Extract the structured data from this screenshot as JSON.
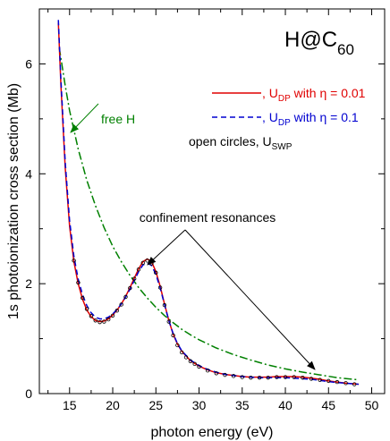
{
  "chart_data": {
    "type": "line",
    "title": {
      "main": "H@C",
      "sub": "60"
    },
    "xlabel": "photon energy (eV)",
    "ylabel": "1s photoionization cross section (Mb)",
    "xlim": [
      11.5,
      51.5
    ],
    "ylim": [
      0,
      7.0
    ],
    "xticks": [
      15,
      20,
      25,
      30,
      35,
      40,
      45,
      50
    ],
    "yticks": [
      0,
      2,
      4,
      6
    ],
    "x_tick_labels": [
      "15",
      "20",
      "25",
      "30",
      "35",
      "40",
      "45",
      "50"
    ],
    "y_tick_labels": [
      "0",
      "2",
      "4",
      "6"
    ],
    "grid": false,
    "legend_position": "top-right",
    "legend": [
      {
        "line": "red-solid",
        "prefix": ", U",
        "sub": "DP",
        "suffix": " with η = 0.01",
        "color": "#e00000"
      },
      {
        "line": "blue-dashed",
        "prefix": ", U",
        "sub": "DP",
        "suffix": " with η = 0.1",
        "color": "#0000d0"
      },
      {
        "line": "",
        "prefix": "open circles, U",
        "sub": "SWP",
        "suffix": "",
        "color": "#000000"
      }
    ],
    "annotations": {
      "free_h": "free H",
      "confinement": "confinement resonances"
    },
    "series": [
      {
        "name": "free H",
        "style": "dash-dot",
        "color": "#008000",
        "points": [
          [
            13.8,
            6.3
          ],
          [
            14.5,
            5.6
          ],
          [
            15,
            5.15
          ],
          [
            16,
            4.45
          ],
          [
            17,
            3.88
          ],
          [
            18,
            3.42
          ],
          [
            19,
            3.02
          ],
          [
            20,
            2.68
          ],
          [
            21,
            2.4
          ],
          [
            22,
            2.15
          ],
          [
            23,
            1.93
          ],
          [
            24,
            1.74
          ],
          [
            25,
            1.57
          ],
          [
            26,
            1.42
          ],
          [
            27,
            1.29
          ],
          [
            28,
            1.17
          ],
          [
            29,
            1.07
          ],
          [
            30,
            0.98
          ],
          [
            32,
            0.83
          ],
          [
            34,
            0.71
          ],
          [
            36,
            0.61
          ],
          [
            38,
            0.52
          ],
          [
            40,
            0.45
          ],
          [
            42,
            0.39
          ],
          [
            44,
            0.34
          ],
          [
            46,
            0.29
          ],
          [
            48.5,
            0.25
          ]
        ]
      },
      {
        "name": "U_DP with η = 0.01",
        "style": "solid",
        "color": "#e00000",
        "points": [
          [
            13.7,
            6.75
          ],
          [
            14,
            5.6
          ],
          [
            14.5,
            4.1
          ],
          [
            15,
            3.05
          ],
          [
            15.5,
            2.4
          ],
          [
            16,
            2.0
          ],
          [
            16.5,
            1.72
          ],
          [
            17,
            1.52
          ],
          [
            17.5,
            1.4
          ],
          [
            18,
            1.33
          ],
          [
            18.5,
            1.31
          ],
          [
            19,
            1.32
          ],
          [
            19.5,
            1.36
          ],
          [
            20,
            1.43
          ],
          [
            20.5,
            1.52
          ],
          [
            21,
            1.63
          ],
          [
            21.5,
            1.77
          ],
          [
            22,
            1.93
          ],
          [
            22.5,
            2.1
          ],
          [
            23,
            2.27
          ],
          [
            23.5,
            2.4
          ],
          [
            24,
            2.45
          ],
          [
            24.5,
            2.4
          ],
          [
            25,
            2.22
          ],
          [
            25.5,
            1.95
          ],
          [
            26,
            1.63
          ],
          [
            26.5,
            1.33
          ],
          [
            27,
            1.08
          ],
          [
            27.5,
            0.9
          ],
          [
            28,
            0.77
          ],
          [
            29,
            0.6
          ],
          [
            30,
            0.5
          ],
          [
            31,
            0.43
          ],
          [
            32,
            0.38
          ],
          [
            33,
            0.35
          ],
          [
            34,
            0.33
          ],
          [
            35,
            0.31
          ],
          [
            36,
            0.3
          ],
          [
            37,
            0.3
          ],
          [
            38,
            0.3
          ],
          [
            39,
            0.31
          ],
          [
            40,
            0.31
          ],
          [
            41,
            0.31
          ],
          [
            42,
            0.3
          ],
          [
            43,
            0.28
          ],
          [
            44,
            0.26
          ],
          [
            45,
            0.23
          ],
          [
            46,
            0.21
          ],
          [
            47,
            0.19
          ],
          [
            48.5,
            0.17
          ]
        ]
      },
      {
        "name": "U_DP with η = 0.1",
        "style": "dashed",
        "color": "#0000d0",
        "points": [
          [
            13.7,
            6.8
          ],
          [
            14,
            5.7
          ],
          [
            14.5,
            4.2
          ],
          [
            15,
            3.15
          ],
          [
            15.5,
            2.5
          ],
          [
            16,
            2.08
          ],
          [
            16.5,
            1.8
          ],
          [
            17,
            1.6
          ],
          [
            17.5,
            1.47
          ],
          [
            18,
            1.39
          ],
          [
            18.5,
            1.36
          ],
          [
            19,
            1.36
          ],
          [
            19.5,
            1.39
          ],
          [
            20,
            1.45
          ],
          [
            20.5,
            1.53
          ],
          [
            21,
            1.63
          ],
          [
            21.5,
            1.76
          ],
          [
            22,
            1.9
          ],
          [
            22.5,
            2.06
          ],
          [
            23,
            2.22
          ],
          [
            23.5,
            2.34
          ],
          [
            24,
            2.38
          ],
          [
            24.5,
            2.33
          ],
          [
            25,
            2.17
          ],
          [
            25.5,
            1.92
          ],
          [
            26,
            1.62
          ],
          [
            26.5,
            1.33
          ],
          [
            27,
            1.09
          ],
          [
            27.5,
            0.91
          ],
          [
            28,
            0.78
          ],
          [
            29,
            0.61
          ],
          [
            30,
            0.51
          ],
          [
            31,
            0.44
          ],
          [
            32,
            0.39
          ],
          [
            33,
            0.35
          ],
          [
            34,
            0.33
          ],
          [
            35,
            0.31
          ],
          [
            36,
            0.3
          ],
          [
            37,
            0.29
          ],
          [
            38,
            0.29
          ],
          [
            39,
            0.29
          ],
          [
            40,
            0.29
          ],
          [
            41,
            0.28
          ],
          [
            42,
            0.27
          ],
          [
            43,
            0.26
          ],
          [
            44,
            0.24
          ],
          [
            45,
            0.22
          ],
          [
            46,
            0.2
          ],
          [
            47,
            0.19
          ],
          [
            48.5,
            0.17
          ]
        ]
      },
      {
        "name": "U_SWP",
        "style": "open-circles",
        "color": "#000000",
        "points": [
          [
            15.5,
            2.42
          ],
          [
            16,
            2.02
          ],
          [
            16.5,
            1.74
          ],
          [
            17,
            1.54
          ],
          [
            17.5,
            1.41
          ],
          [
            18,
            1.33
          ],
          [
            18.5,
            1.3
          ],
          [
            19,
            1.31
          ],
          [
            19.5,
            1.35
          ],
          [
            20,
            1.42
          ],
          [
            20.5,
            1.51
          ],
          [
            21,
            1.62
          ],
          [
            21.5,
            1.76
          ],
          [
            22,
            1.92
          ],
          [
            22.5,
            2.09
          ],
          [
            23,
            2.26
          ],
          [
            23.5,
            2.38
          ],
          [
            24,
            2.42
          ],
          [
            24.5,
            2.37
          ],
          [
            25,
            2.2
          ],
          [
            25.5,
            1.93
          ],
          [
            26,
            1.61
          ],
          [
            26.5,
            1.31
          ],
          [
            27,
            1.06
          ],
          [
            27.5,
            0.88
          ],
          [
            28,
            0.75
          ],
          [
            28.5,
            0.66
          ],
          [
            29,
            0.59
          ],
          [
            29.5,
            0.54
          ],
          [
            30,
            0.49
          ],
          [
            31,
            0.42
          ],
          [
            32,
            0.37
          ],
          [
            33,
            0.34
          ],
          [
            34,
            0.32
          ],
          [
            35,
            0.3
          ],
          [
            36,
            0.29
          ],
          [
            37,
            0.29
          ],
          [
            38,
            0.29
          ],
          [
            39,
            0.3
          ],
          [
            40,
            0.3
          ],
          [
            41,
            0.3
          ],
          [
            42,
            0.29
          ],
          [
            43,
            0.27
          ],
          [
            44,
            0.25
          ],
          [
            45,
            0.23
          ],
          [
            46,
            0.21
          ],
          [
            47,
            0.19
          ],
          [
            48,
            0.17
          ]
        ]
      }
    ]
  }
}
